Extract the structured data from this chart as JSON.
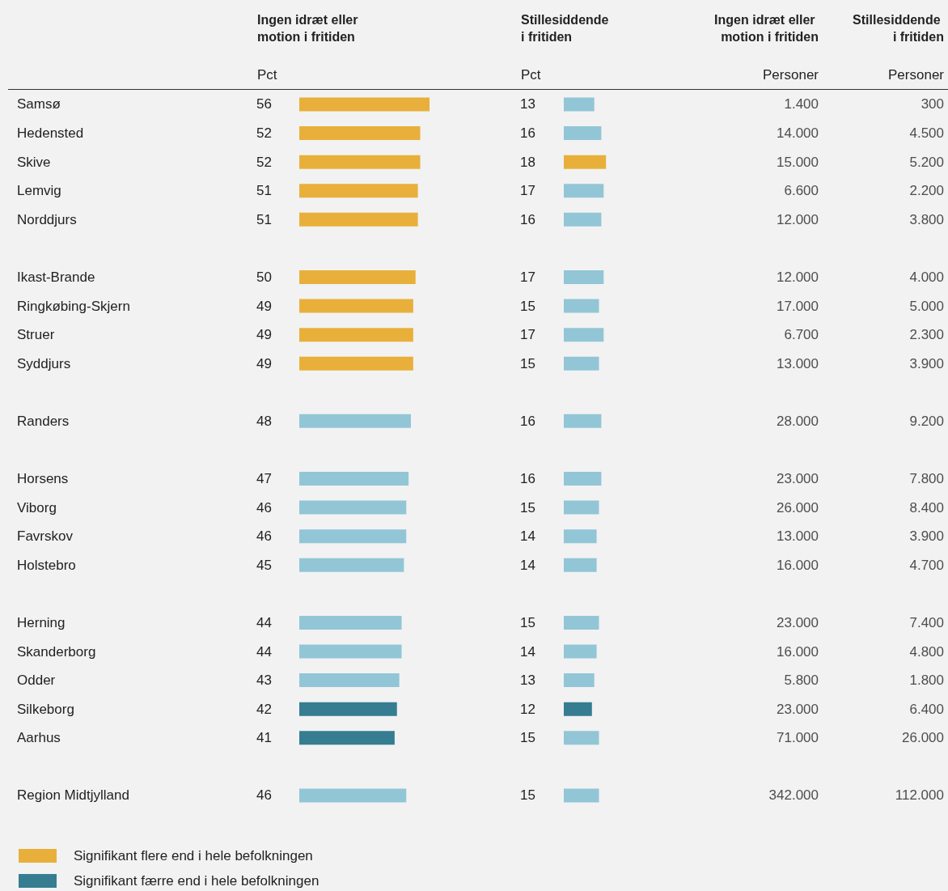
{
  "chart_data": [
    {
      "type": "bar",
      "orientation": "horizontal",
      "stacked": true,
      "data_labels": true,
      "legend": "bottom left",
      "title": "Ingen idræt eller motion i fritiden",
      "xlabel": "Pct",
      "categories": [
        "Samsø",
        "Hedensted",
        "Skive",
        "Lemvig",
        "Norddjurs",
        null,
        "Ikast-Brande",
        "Ringkøbing-Skjern",
        "Struer",
        "Syddjurs",
        null,
        "Randers",
        null,
        "Horsens",
        "Viborg",
        "Favrskov",
        "Holstebro",
        null,
        "Herning",
        "Skanderborg",
        "Odder",
        "Silkeborg",
        "Aarhus",
        null,
        "Region Midtjylland"
      ],
      "series": [
        {
          "color": "#92c6d6",
          "values": [
            null,
            null,
            null,
            null,
            null,
            null,
            null,
            null,
            null,
            null,
            null,
            48,
            null,
            47,
            46,
            46,
            45,
            null,
            44,
            44,
            43,
            null,
            null,
            null,
            46
          ]
        },
        {
          "name": "Signifikant flere end i hele befolkningen",
          "color": "#e8b03a",
          "values": [
            56,
            52,
            52,
            51,
            51,
            null,
            50,
            49,
            49,
            49,
            null,
            null,
            null,
            null,
            null,
            null,
            null,
            null,
            null,
            null,
            null,
            null,
            null,
            null,
            null
          ]
        },
        {
          "name": "Signifikant færre end i hele befolkningen",
          "color": "#367d91",
          "values": [
            null,
            null,
            null,
            null,
            null,
            null,
            null,
            null,
            null,
            null,
            null,
            null,
            null,
            null,
            null,
            null,
            null,
            null,
            null,
            null,
            null,
            42,
            41,
            null,
            null
          ]
        }
      ]
    },
    {
      "type": "bar",
      "orientation": "horizontal",
      "stacked": true,
      "data_labels": true,
      "title": "Stillesiddende i fritiden",
      "xlabel": "Pct",
      "series": [
        {
          "color": "#92c6d6",
          "values": [
            13,
            16,
            null,
            17,
            16,
            null,
            17,
            15,
            17,
            15,
            null,
            16,
            null,
            16,
            15,
            14,
            14,
            null,
            15,
            14,
            13,
            null,
            15,
            null,
            15
          ]
        },
        {
          "color": "#e8b03a",
          "values": [
            null,
            null,
            18,
            null,
            null,
            null,
            null,
            null,
            null,
            null,
            null,
            null,
            null,
            null,
            null,
            null,
            null,
            null,
            null,
            null,
            null,
            null,
            null,
            null,
            null
          ]
        },
        {
          "color": "#367d91",
          "values": [
            null,
            null,
            null,
            null,
            null,
            null,
            null,
            null,
            null,
            null,
            null,
            null,
            null,
            null,
            null,
            null,
            null,
            null,
            null,
            null,
            null,
            12,
            null,
            null,
            null
          ]
        }
      ]
    },
    {
      "type": "other",
      "title": "Ingen idræt eller motion i fritiden",
      "xlabel": "Personer",
      "value_labels": [
        "1.400",
        "14.000",
        "15.000",
        "6.600",
        "12.000",
        null,
        "12.000",
        "17.000",
        "6.700",
        "13.000",
        null,
        "28.000",
        null,
        "23.000",
        "26.000",
        "13.000",
        "16.000",
        null,
        "23.000",
        "16.000",
        "5.800",
        "23.000",
        "71.000",
        null,
        "342.000"
      ]
    },
    {
      "type": "other",
      "title": "Stillesiddende i fritiden",
      "xlabel": "Personer",
      "value_labels": [
        "300",
        "4.500",
        "5.200",
        "2.200",
        "3.800",
        null,
        "4.000",
        "5.000",
        "2.300",
        "3.900",
        null,
        "9.200",
        null,
        "7.800",
        "8.400",
        "3.900",
        "4.700",
        null,
        "7.400",
        "4.800",
        "1.800",
        "6.400",
        "26.000",
        null,
        "112.000"
      ]
    }
  ]
}
